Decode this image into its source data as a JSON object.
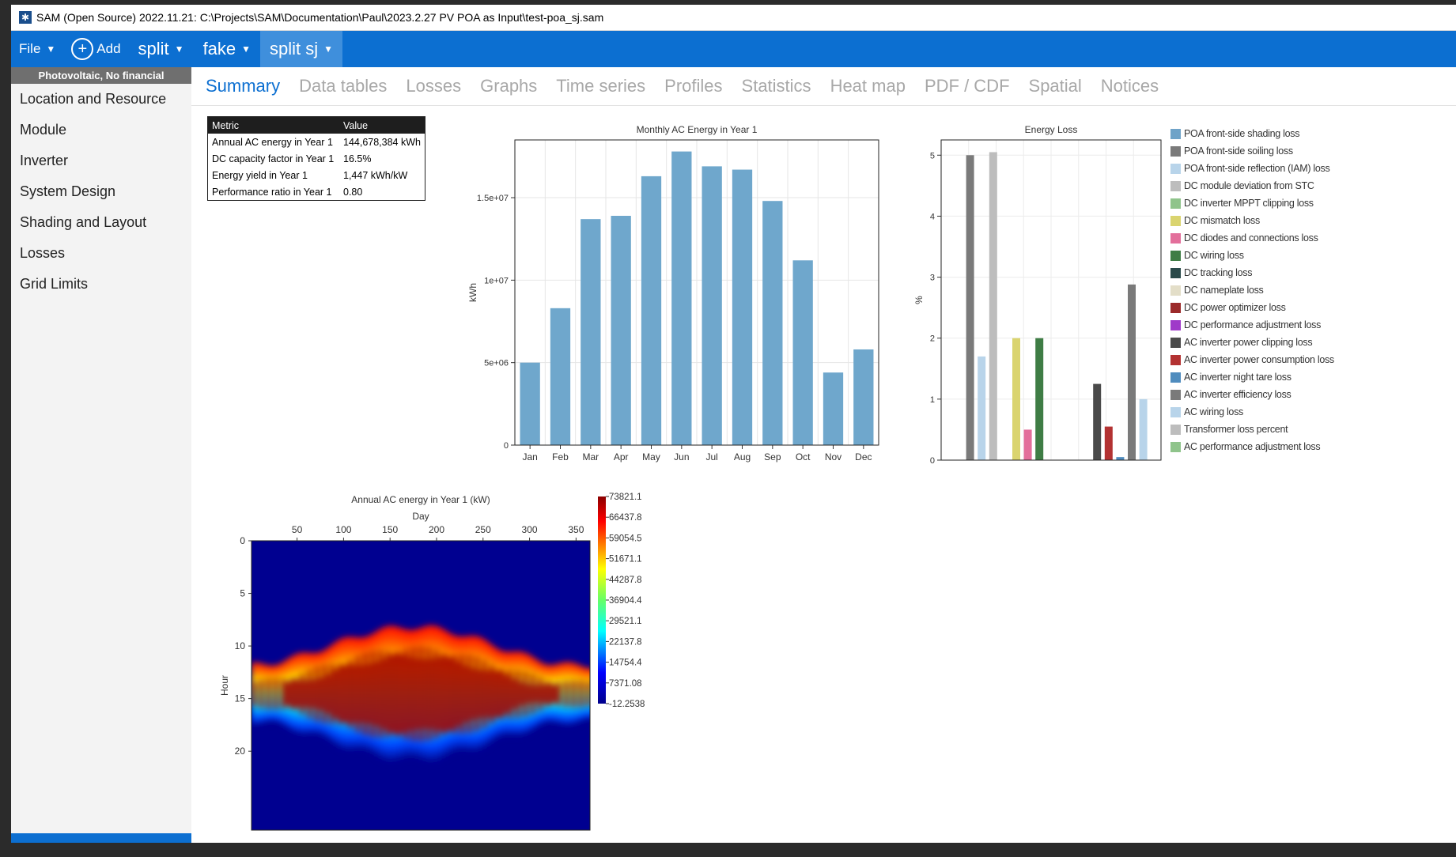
{
  "window": {
    "title": "SAM (Open Source) 2022.11.21: C:\\Projects\\SAM\\Documentation\\Paul\\2023.2.27 PV POA as Input\\test-poa_sj.sam"
  },
  "toolbar": {
    "file_label": "File",
    "add_label": "Add",
    "cases": [
      {
        "label": "split",
        "active": false
      },
      {
        "label": "fake",
        "active": false
      },
      {
        "label": "split sj",
        "active": true
      }
    ]
  },
  "sidebar": {
    "header": "Photovoltaic, No financial",
    "items": [
      {
        "label": "Location and Resource"
      },
      {
        "label": "Module"
      },
      {
        "label": "Inverter"
      },
      {
        "label": "System Design"
      },
      {
        "label": "Shading and Layout"
      },
      {
        "label": "Losses"
      },
      {
        "label": "Grid Limits"
      }
    ]
  },
  "tabs": [
    {
      "label": "Summary",
      "active": true
    },
    {
      "label": "Data tables"
    },
    {
      "label": "Losses"
    },
    {
      "label": "Graphs"
    },
    {
      "label": "Time series"
    },
    {
      "label": "Profiles"
    },
    {
      "label": "Statistics"
    },
    {
      "label": "Heat map"
    },
    {
      "label": "PDF / CDF"
    },
    {
      "label": "Spatial"
    },
    {
      "label": "Notices"
    }
  ],
  "metrics_table": {
    "headers": [
      "Metric",
      "Value"
    ],
    "rows": [
      {
        "metric": "Annual AC energy in Year 1",
        "value": "144,678,384 kWh"
      },
      {
        "metric": "DC capacity factor in Year 1",
        "value": "16.5%"
      },
      {
        "metric": "Energy yield in Year 1",
        "value": "1,447 kWh/kW"
      },
      {
        "metric": "Performance ratio in Year 1",
        "value": "0.80"
      }
    ]
  },
  "chart_data": [
    {
      "type": "bar",
      "title": "Monthly AC Energy in Year 1",
      "xlabel": "",
      "ylabel": "kWh",
      "categories": [
        "Jan",
        "Feb",
        "Mar",
        "Apr",
        "May",
        "Jun",
        "Jul",
        "Aug",
        "Sep",
        "Oct",
        "Nov",
        "Dec"
      ],
      "values": [
        5000000,
        8300000,
        13700000,
        13900000,
        16300000,
        17800000,
        16900000,
        16700000,
        14800000,
        11200000,
        4400000,
        5800000
      ],
      "ylim": [
        0,
        18500000
      ],
      "yticks": [
        {
          "v": 0,
          "label": "0"
        },
        {
          "v": 5000000,
          "label": "5e+06"
        },
        {
          "v": 10000000,
          "label": "1e+07"
        },
        {
          "v": 15000000,
          "label": "1.5e+07"
        }
      ],
      "grid": true,
      "color": "#6fa7cc"
    },
    {
      "type": "bar",
      "title": "Energy Loss",
      "ylabel": "%",
      "ylim": [
        0,
        5.25
      ],
      "yticks": [
        0,
        1,
        2,
        3,
        4,
        5
      ],
      "grid": true,
      "legend_position": "right",
      "categories": [
        "POA front-side shading loss",
        "POA front-side soiling loss",
        "POA front-side reflection (IAM) loss",
        "DC module deviation from STC",
        "DC inverter MPPT clipping loss",
        "DC mismatch loss",
        "DC diodes and connections loss",
        "DC wiring loss",
        "DC tracking loss",
        "DC nameplate loss",
        "DC power optimizer loss",
        "DC performance adjustment loss",
        "AC inverter power clipping loss",
        "AC inverter power consumption loss",
        "AC inverter night tare loss",
        "AC inverter efficiency loss",
        "AC wiring loss",
        "Transformer loss percent",
        "AC performance adjustment loss"
      ],
      "values": [
        0,
        5.0,
        1.7,
        5.05,
        0,
        2.0,
        0.5,
        2.0,
        0,
        0,
        0,
        0,
        1.25,
        0.55,
        0.05,
        2.88,
        1.0,
        0,
        0
      ],
      "colors": [
        "#6fa3c8",
        "#7a7a7a",
        "#b8d4ea",
        "#bdbdbd",
        "#8fc48b",
        "#dad46f",
        "#e36f9b",
        "#3f7d45",
        "#2a4a4a",
        "#e3dec8",
        "#9b2a2a",
        "#9f39c9",
        "#4a4a4a",
        "#b33232",
        "#4f8cbe",
        "#7a7a7a",
        "#b8d4ea",
        "#bdbdbd",
        "#8fc48b"
      ]
    },
    {
      "type": "heatmap",
      "title": "Annual AC energy in Year 1 (kW)",
      "xlabel": "Day",
      "ylabel": "Hour",
      "x_ticks": [
        50,
        100,
        150,
        200,
        250,
        300,
        350
      ],
      "y_ticks": [
        0,
        5,
        10,
        15,
        20
      ],
      "xlim": [
        1,
        365
      ],
      "ylim": [
        0,
        23
      ],
      "colorbar_ticks": [
        "73821.1",
        "66437.8",
        "59054.5",
        "51671.1",
        "44287.8",
        "36904.4",
        "29521.1",
        "22137.8",
        "14754.4",
        "7371.08",
        "-12.2538"
      ],
      "value_range": [
        -12.2538,
        73821.1
      ]
    }
  ]
}
